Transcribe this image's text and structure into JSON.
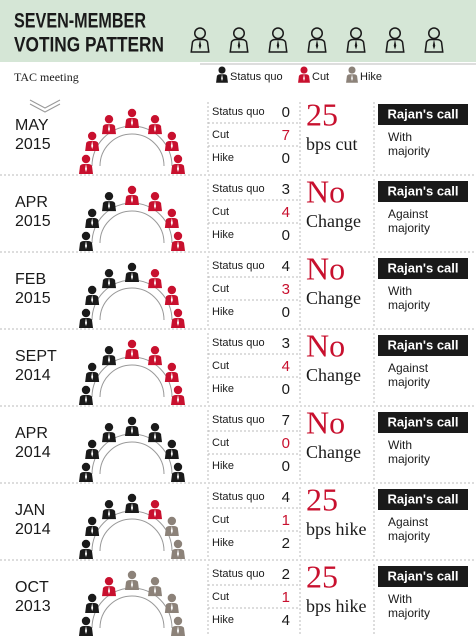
{
  "header": {
    "title_lines": [
      "SEVEN-MEMBER",
      "VOTING PATTERN"
    ],
    "column_label": "TAC meeting"
  },
  "legend": [
    {
      "label": "Status quo",
      "color": "#1a1a1a"
    },
    {
      "label": "Cut",
      "color": "#c8102e"
    },
    {
      "label": "Hike",
      "color": "#8c8279"
    }
  ],
  "call_label": "Rajan's call",
  "rows": [
    {
      "month": "MAY",
      "year": "2015",
      "counts": [
        0,
        7,
        0
      ],
      "decision": [
        "25",
        "bps cut"
      ],
      "call": [
        "With",
        "majority"
      ]
    },
    {
      "month": "APR",
      "year": "2015",
      "counts": [
        3,
        4,
        0
      ],
      "decision": [
        "No",
        "Change"
      ],
      "call": [
        "Against",
        "majority"
      ]
    },
    {
      "month": "FEB",
      "year": "2015",
      "counts": [
        4,
        3,
        0
      ],
      "decision": [
        "No",
        "Change"
      ],
      "call": [
        "With",
        "majority"
      ]
    },
    {
      "month": "SEPT",
      "year": "2014",
      "counts": [
        3,
        4,
        0
      ],
      "decision": [
        "No",
        "Change"
      ],
      "call": [
        "Against",
        "majority"
      ]
    },
    {
      "month": "APR",
      "year": "2014",
      "counts": [
        7,
        0,
        0
      ],
      "decision": [
        "No",
        "Change"
      ],
      "call": [
        "With",
        "majority"
      ]
    },
    {
      "month": "JAN",
      "year": "2014",
      "counts": [
        4,
        1,
        2
      ],
      "decision": [
        "25",
        "bps hike"
      ],
      "call": [
        "Against",
        "majority"
      ]
    },
    {
      "month": "OCT",
      "year": "2013",
      "counts": [
        2,
        1,
        4
      ],
      "decision": [
        "25",
        "bps hike"
      ],
      "call": [
        "With",
        "majority"
      ]
    }
  ]
}
